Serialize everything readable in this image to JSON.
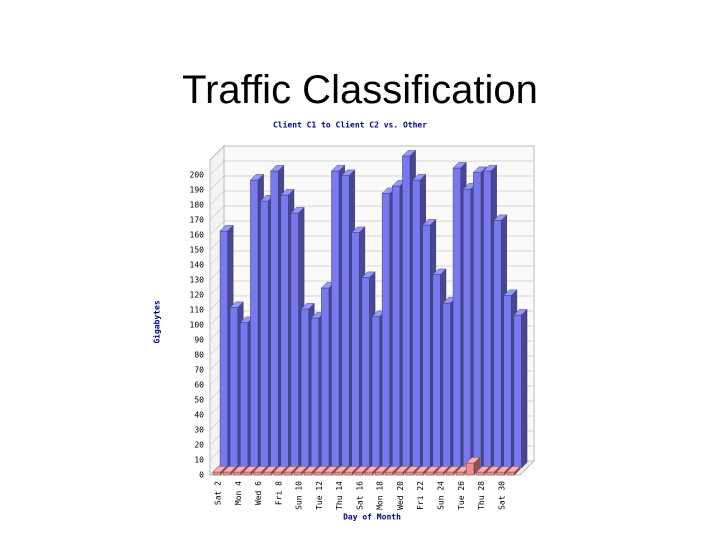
{
  "title": "Traffic Classification",
  "chart_data": {
    "type": "bar3d",
    "title": "Client C1 to Client C2 vs. Other",
    "x_label": "Day of Month",
    "y_label": "Gigabytes",
    "categories": [
      "Sat 2",
      null,
      "Mon 4",
      null,
      "Wed 6",
      null,
      "Fri 8",
      null,
      "Sun 10",
      null,
      "Tue 12",
      null,
      "Thu 14",
      null,
      "Sat 16",
      null,
      "Mon 18",
      null,
      "Wed 20",
      null,
      "Fri 22",
      null,
      "Sun 24",
      null,
      "Tue 26",
      null,
      "Thu 28",
      null,
      "Sat 30",
      null
    ],
    "series": [
      {
        "color": "#7878f0",
        "values": [
          158,
          107,
          97,
          192,
          178,
          198,
          182,
          170,
          106,
          100,
          120,
          198,
          195,
          157,
          127,
          101,
          183,
          188,
          208,
          192,
          162,
          129,
          110,
          200,
          186,
          197,
          198,
          165,
          115,
          102
        ]
      },
      {
        "color": "#f08c8c",
        "values": [
          2,
          2,
          2,
          2,
          2,
          2,
          2,
          2,
          2,
          2,
          2,
          2,
          2,
          2,
          2,
          2,
          2,
          2,
          2,
          2,
          2,
          2,
          2,
          2,
          2,
          8,
          2,
          2,
          2,
          2
        ]
      }
    ],
    "ylim": [
      0,
      210
    ],
    "yticks": [
      0,
      10,
      20,
      30,
      40,
      50,
      60,
      70,
      80,
      90,
      100,
      110,
      120,
      130,
      140,
      150,
      160,
      170,
      180,
      190,
      200
    ],
    "grid": true
  }
}
